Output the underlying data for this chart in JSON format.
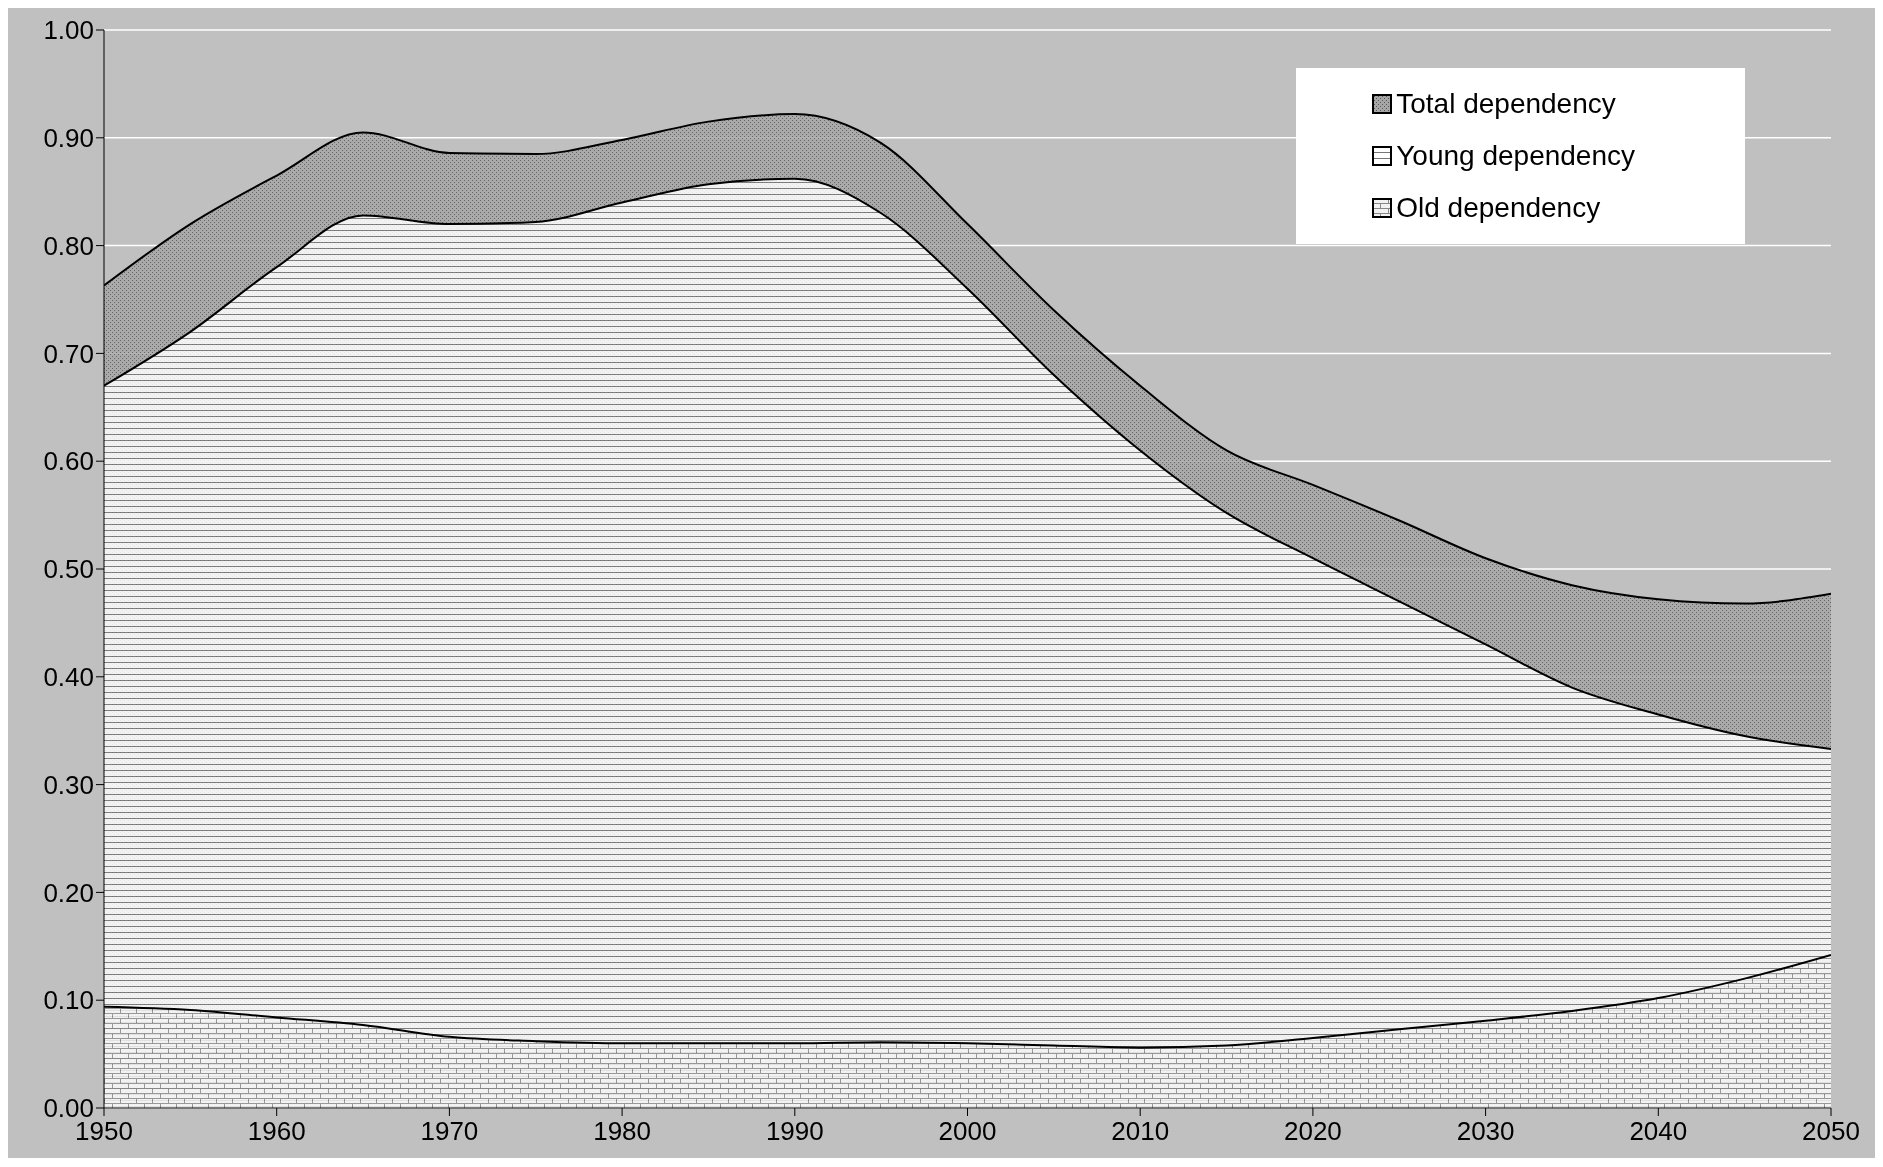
{
  "chart_data": {
    "type": "area",
    "x": [
      1950,
      1955,
      1960,
      1965,
      1970,
      1975,
      1980,
      1985,
      1990,
      1995,
      2000,
      2005,
      2010,
      2015,
      2020,
      2025,
      2030,
      2035,
      2040,
      2045,
      2050
    ],
    "series": [
      {
        "name": "Total dependency",
        "color": "#a6a6a6",
        "values": [
          0.763,
          0.82,
          0.865,
          0.905,
          0.886,
          0.885,
          0.898,
          0.915,
          0.922,
          0.895,
          0.82,
          0.74,
          0.67,
          0.61,
          0.578,
          0.545,
          0.51,
          0.485,
          0.472,
          0.468,
          0.477
        ]
      },
      {
        "name": "Young dependency",
        "color": "#ffffff",
        "values": [
          0.67,
          0.72,
          0.78,
          0.828,
          0.82,
          0.822,
          0.84,
          0.857,
          0.862,
          0.83,
          0.76,
          0.68,
          0.61,
          0.552,
          0.51,
          0.47,
          0.43,
          0.39,
          0.365,
          0.345,
          0.333
        ]
      },
      {
        "name": "Old dependency",
        "color": "#f2f2f2",
        "values": [
          0.094,
          0.091,
          0.084,
          0.077,
          0.066,
          0.062,
          0.06,
          0.06,
          0.06,
          0.061,
          0.06,
          0.058,
          0.056,
          0.058,
          0.065,
          0.073,
          0.081,
          0.09,
          0.102,
          0.12,
          0.142
        ]
      }
    ],
    "xlim": [
      1950,
      2050
    ],
    "xticks": [
      1950,
      1960,
      1970,
      1980,
      1990,
      2000,
      2010,
      2020,
      2030,
      2040,
      2050
    ],
    "ylim": [
      0,
      1
    ],
    "yticks": [
      {
        "value": 0,
        "label": "0.00"
      },
      {
        "value": 0.1,
        "label": "0.10"
      },
      {
        "value": 0.2,
        "label": "0.20"
      },
      {
        "value": 0.3,
        "label": "0.30"
      },
      {
        "value": 0.4,
        "label": "0.40"
      },
      {
        "value": 0.5,
        "label": "0.50"
      },
      {
        "value": 0.6,
        "label": "0.60"
      },
      {
        "value": 0.7,
        "label": "0.70"
      },
      {
        "value": 0.8,
        "label": "0.80"
      },
      {
        "value": 0.9,
        "label": "0.90"
      },
      {
        "value": 1,
        "label": "1.00"
      }
    ],
    "grid": "y",
    "legend": "top right"
  }
}
